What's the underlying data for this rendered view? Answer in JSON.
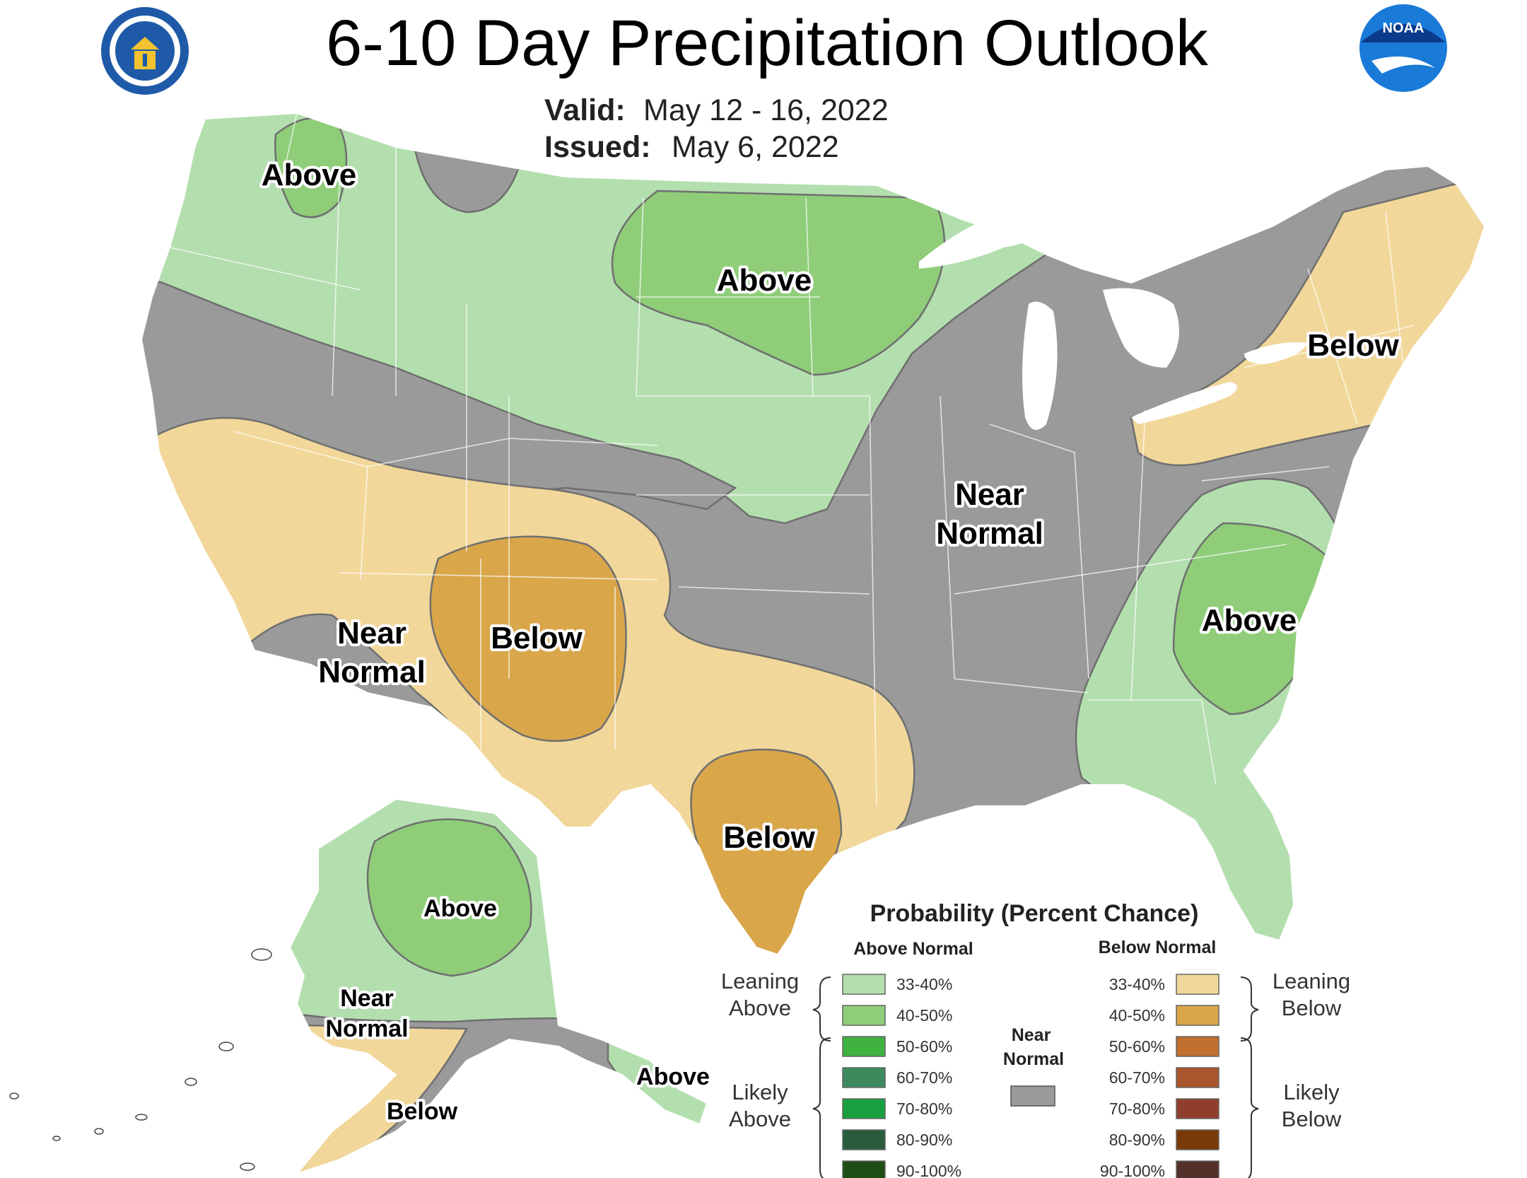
{
  "header": {
    "title": "6-10 Day Precipitation Outlook",
    "valid_label": "Valid:",
    "valid_value": "May 12 - 16, 2022",
    "issued_label": "Issued:",
    "issued_value": "May 6, 2022",
    "left_logo": "department-of-commerce-seal",
    "right_logo": "noaa-logo",
    "noaa_logo_text": "NOAA"
  },
  "map": {
    "category_colors": {
      "above_33_40": "#b3dfae",
      "above_40_50": "#8fcd79",
      "near_normal": "#9a9a9a",
      "below_33_40": "#f1d79a",
      "below_40_50": "#d9a64a",
      "lakes": "#ffffff"
    },
    "region_labels": [
      {
        "text": "Above"
      },
      {
        "text": "Above"
      },
      {
        "text": "Below"
      },
      {
        "text": "Near Normal"
      },
      {
        "text": "Near Normal"
      },
      {
        "text": "Below"
      },
      {
        "text": "Above"
      },
      {
        "text": "Below"
      },
      {
        "text": "Above"
      },
      {
        "text": "Near Normal"
      },
      {
        "text": "Below"
      },
      {
        "text": "Above"
      }
    ]
  },
  "legend": {
    "title": "Probability (Percent Chance)",
    "above_header": "Above Normal",
    "below_header": "Below Normal",
    "near_header": "Near Normal",
    "leaning_above": "Leaning Above",
    "likely_above": "Likely Above",
    "leaning_below": "Leaning Below",
    "likely_below": "Likely Below",
    "near_color": "#9a9a9a",
    "above": [
      {
        "label": "33-40%",
        "color": "#b3dfae"
      },
      {
        "label": "40-50%",
        "color": "#8fcd79"
      },
      {
        "label": "50-60%",
        "color": "#3fb23f"
      },
      {
        "label": "60-70%",
        "color": "#3c8a5e"
      },
      {
        "label": "70-80%",
        "color": "#199f3f"
      },
      {
        "label": "80-90%",
        "color": "#285c3a"
      },
      {
        "label": "90-100%",
        "color": "#1f4d16"
      }
    ],
    "below": [
      {
        "label": "33-40%",
        "color": "#f1d79a"
      },
      {
        "label": "40-50%",
        "color": "#d9a64a"
      },
      {
        "label": "50-60%",
        "color": "#c06f2e"
      },
      {
        "label": "60-70%",
        "color": "#a9552d"
      },
      {
        "label": "70-80%",
        "color": "#8e3e2b"
      },
      {
        "label": "80-90%",
        "color": "#7a3a08"
      },
      {
        "label": "90-100%",
        "color": "#54302a"
      }
    ]
  }
}
